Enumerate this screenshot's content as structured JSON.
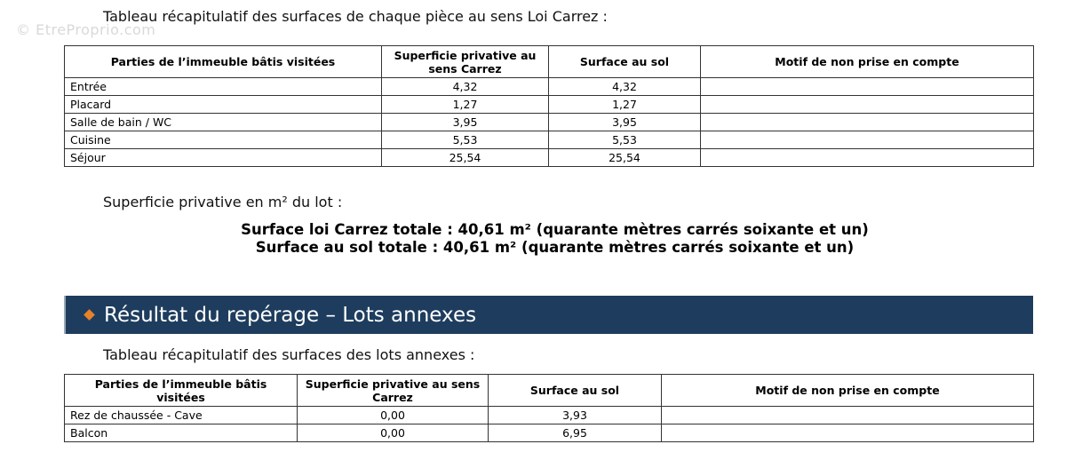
{
  "watermark": "© EtreProprio.com",
  "carrez": {
    "intro": "Tableau récapitulatif des surfaces de chaque pièce au sens Loi Carrez :",
    "headers": [
      "Parties de l’immeuble bâtis visitées",
      "Superficie privative au sens Carrez",
      "Surface au sol",
      "Motif de non prise en compte"
    ],
    "rows": [
      {
        "piece": "Entrée",
        "carrez": "4,32",
        "sol": "4,32",
        "motif": ""
      },
      {
        "piece": "Placard",
        "carrez": "1,27",
        "sol": "1,27",
        "motif": ""
      },
      {
        "piece": "Salle de bain / WC",
        "carrez": "3,95",
        "sol": "3,95",
        "motif": ""
      },
      {
        "piece": "Cuisine",
        "carrez": "5,53",
        "sol": "5,53",
        "motif": ""
      },
      {
        "piece": "Séjour",
        "carrez": "25,54",
        "sol": "25,54",
        "motif": ""
      }
    ],
    "superficie_label": "Superficie privative en m² du lot :",
    "total_carrez": "Surface loi Carrez totale : 40,61 m² (quarante mètres carrés soixante et un)",
    "total_sol": "Surface au sol totale : 40,61 m² (quarante mètres carrés soixante et un)"
  },
  "section": {
    "title": "Résultat du repérage – Lots annexes",
    "bullet_color": "#e8812a",
    "background_color": "#1e3d5e"
  },
  "annexes": {
    "intro": "Tableau récapitulatif des surfaces des lots annexes :",
    "headers": [
      "Parties de l’immeuble bâtis visitées",
      "Superficie privative au sens Carrez",
      "Surface au sol",
      "Motif de non prise en compte"
    ],
    "rows": [
      {
        "piece": "Rez de chaussée - Cave",
        "carrez": "0,00",
        "sol": "3,93",
        "motif": ""
      },
      {
        "piece": "Balcon",
        "carrez": "0,00",
        "sol": "6,95",
        "motif": ""
      }
    ]
  }
}
